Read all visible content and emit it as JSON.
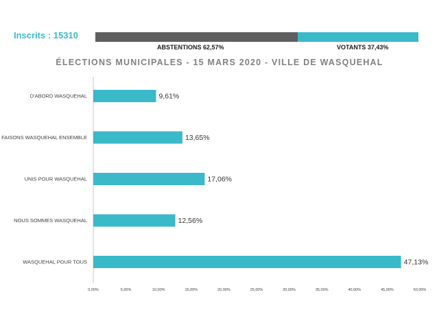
{
  "header": {
    "inscrits_label": "Inscrits : 15310",
    "abstentions_label": "ABSTENTIONS 62,57%",
    "votants_label": "VOTANTS 37,43%"
  },
  "participation": {
    "abstentions_pct": 62.57,
    "votants_pct": 37.43,
    "abstentions_color": "#5f5f5f",
    "votants_color": "#3ab9c8"
  },
  "chart_data": {
    "type": "bar",
    "orientation": "horizontal",
    "title": "ÉLECTIONS MUNICIPALES - 15 MARS 2020 - VILLE DE WASQUEHAL",
    "categories": [
      "D'ABORD WASQUEHAL",
      "FAISONS WASQUEHAL ENSEMBLE",
      "UNIS POUR WASQUEHAL",
      "NOUS SOMMES WASQUEHAL",
      "WASQUEHAL POUR TOUS"
    ],
    "values": [
      9.61,
      13.65,
      17.06,
      12.56,
      47.13
    ],
    "value_labels": [
      "9,61%",
      "13,65%",
      "17,06%",
      "12,56%",
      "47,13%"
    ],
    "xlim": [
      0,
      50
    ],
    "x_ticks": [
      "0,00%",
      "5,00%",
      "10,00%",
      "15,00%",
      "20,00%",
      "25,00%",
      "30,00%",
      "35,00%",
      "40,00%",
      "45,00%",
      "50,00%"
    ],
    "bar_color": "#3ab9c8",
    "grid": false,
    "legend": "none"
  }
}
